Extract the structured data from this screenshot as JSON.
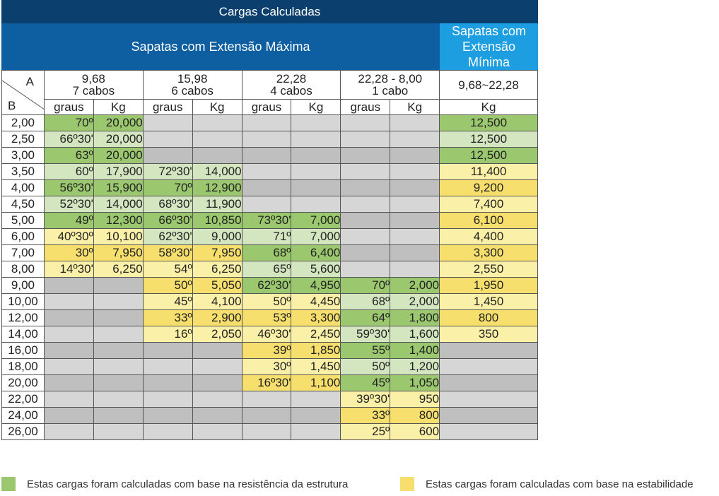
{
  "title": "Cargas Calculadas",
  "header_max": "Sapatas  com Extensão Máxima",
  "header_min": "Sapatas com\nExtensão Mínima",
  "corner": {
    "a": "A",
    "b": "B"
  },
  "groups": [
    {
      "line1": "9,68",
      "line2": "7 cabos"
    },
    {
      "line1": "15,98",
      "line2": "6 cabos"
    },
    {
      "line1": "22,28",
      "line2": "4 cabos"
    },
    {
      "line1": "22,28 - 8,00",
      "line2": "1 cabo"
    }
  ],
  "min_range": "9,68~22,28",
  "sub_graus": "graus",
  "sub_kg": "Kg",
  "colors": {
    "structure_green": "#9bc86f",
    "light_green": "#d3e6c0",
    "stability_yellow": "#f7df6e",
    "light_yellow": "#fbf0a7",
    "empty_gray": "#d6d6d6",
    "dark_gray": "#bfbfbf",
    "title_navy": "#0b3f6e",
    "header_blue": "#0d5fa1",
    "header_light_blue": "#1d9ee0"
  },
  "rows": [
    {
      "b": "2,00",
      "cells": [
        "70º",
        "20,000",
        "",
        "",
        "",
        "",
        "",
        "",
        "12,500"
      ],
      "colors": [
        "G",
        "G",
        "e",
        "e",
        "e",
        "e",
        "e",
        "e",
        "G"
      ]
    },
    {
      "b": "2,50",
      "cells": [
        "66º30'",
        "20,000",
        "",
        "",
        "",
        "",
        "",
        "",
        "12,500"
      ],
      "colors": [
        "g",
        "g",
        "e",
        "e",
        "e",
        "e",
        "e",
        "e",
        "g"
      ]
    },
    {
      "b": "3,00",
      "cells": [
        "63º",
        "20,000",
        "",
        "",
        "",
        "",
        "",
        "",
        "12,500"
      ],
      "colors": [
        "G",
        "G",
        "d",
        "d",
        "d",
        "d",
        "d",
        "d",
        "G"
      ]
    },
    {
      "b": "3,50",
      "cells": [
        "60º",
        "17,900",
        "72º30'",
        "14,000",
        "",
        "",
        "",
        "",
        "11,400"
      ],
      "colors": [
        "g",
        "g",
        "g",
        "g",
        "e",
        "e",
        "e",
        "e",
        "y"
      ]
    },
    {
      "b": "4,00",
      "cells": [
        "56º30'",
        "15,900",
        "70º",
        "12,900",
        "",
        "",
        "",
        "",
        "9,200"
      ],
      "colors": [
        "G",
        "G",
        "G",
        "G",
        "d",
        "d",
        "d",
        "d",
        "Y"
      ]
    },
    {
      "b": "4,50",
      "cells": [
        "52º30'",
        "14,000",
        "68º30'",
        "11,900",
        "",
        "",
        "",
        "",
        "7,400"
      ],
      "colors": [
        "g",
        "g",
        "g",
        "g",
        "e",
        "e",
        "e",
        "e",
        "y"
      ]
    },
    {
      "b": "5,00",
      "cells": [
        "49º",
        "12,300",
        "66º30'",
        "10,850",
        "73º30'",
        "7,000",
        "",
        "",
        "6,100"
      ],
      "colors": [
        "G",
        "G",
        "G",
        "G",
        "G",
        "G",
        "d",
        "d",
        "Y"
      ]
    },
    {
      "b": "6,00",
      "cells": [
        "40º30º",
        "10,100",
        "62º30'",
        "9,000",
        "71º",
        "7,000",
        "",
        "",
        "4,400"
      ],
      "colors": [
        "y",
        "y",
        "g",
        "g",
        "g",
        "g",
        "e",
        "e",
        "y"
      ]
    },
    {
      "b": "7,00",
      "cells": [
        "30º",
        "7,950",
        "58º30'",
        "7,950",
        "68º",
        "6,400",
        "",
        "",
        "3,300"
      ],
      "colors": [
        "Y",
        "Y",
        "Y",
        "Y",
        "G",
        "G",
        "d",
        "d",
        "Y"
      ]
    },
    {
      "b": "8,00",
      "cells": [
        "14º30'",
        "6,250",
        "54º",
        "6,250",
        "65º",
        "5,600",
        "",
        "",
        "2,550"
      ],
      "colors": [
        "y",
        "y",
        "y",
        "y",
        "g",
        "g",
        "e",
        "e",
        "y"
      ]
    },
    {
      "b": "9,00",
      "cells": [
        "",
        "",
        "50º",
        "5,050",
        "62º30'",
        "4,950",
        "70º",
        "2,000",
        "1,950"
      ],
      "colors": [
        "d",
        "d",
        "Y",
        "Y",
        "G",
        "G",
        "G",
        "G",
        "Y"
      ]
    },
    {
      "b": "10,00",
      "cells": [
        "",
        "",
        "45º",
        "4,100",
        "50º",
        "4,450",
        "68º",
        "2,000",
        "1,450"
      ],
      "colors": [
        "e",
        "e",
        "y",
        "y",
        "y",
        "y",
        "g",
        "g",
        "y"
      ]
    },
    {
      "b": "12,00",
      "cells": [
        "",
        "",
        "33º",
        "2,900",
        "53º",
        "3,300",
        "64º",
        "1,800",
        "800"
      ],
      "colors": [
        "d",
        "d",
        "Y",
        "Y",
        "Y",
        "Y",
        "G",
        "G",
        "Y"
      ]
    },
    {
      "b": "14,00",
      "cells": [
        "",
        "",
        "16º",
        "2,050",
        "46º30'",
        "2,450",
        "59º30'",
        "1,600",
        "350"
      ],
      "colors": [
        "e",
        "e",
        "y",
        "y",
        "y",
        "y",
        "g",
        "g",
        "y"
      ]
    },
    {
      "b": "16,00",
      "cells": [
        "",
        "",
        "",
        "",
        "39º",
        "1,850",
        "55º",
        "1,400",
        ""
      ],
      "colors": [
        "d",
        "d",
        "d",
        "d",
        "Y",
        "Y",
        "G",
        "G",
        "d"
      ]
    },
    {
      "b": "18,00",
      "cells": [
        "",
        "",
        "",
        "",
        "30º",
        "1,450",
        "50º",
        "1,200",
        ""
      ],
      "colors": [
        "e",
        "e",
        "e",
        "e",
        "y",
        "y",
        "g",
        "g",
        "e"
      ]
    },
    {
      "b": "20,00",
      "cells": [
        "",
        "",
        "",
        "",
        "16º30'",
        "1,100",
        "45º",
        "1,050",
        ""
      ],
      "colors": [
        "d",
        "d",
        "d",
        "d",
        "Y",
        "Y",
        "G",
        "G",
        "d"
      ]
    },
    {
      "b": "22,00",
      "cells": [
        "",
        "",
        "",
        "",
        "",
        "",
        "39º30'",
        "950",
        ""
      ],
      "colors": [
        "e",
        "e",
        "e",
        "e",
        "e",
        "e",
        "y",
        "y",
        "e"
      ]
    },
    {
      "b": "24,00",
      "cells": [
        "",
        "",
        "",
        "",
        "",
        "",
        "33º",
        "800",
        ""
      ],
      "colors": [
        "d",
        "d",
        "d",
        "d",
        "d",
        "d",
        "Y",
        "Y",
        "d"
      ]
    },
    {
      "b": "26,00",
      "cells": [
        "",
        "",
        "",
        "",
        "",
        "",
        "25º",
        "600",
        ""
      ],
      "colors": [
        "e",
        "e",
        "e",
        "e",
        "e",
        "e",
        "y",
        "y",
        "e"
      ]
    }
  ],
  "legend": {
    "structure": "Estas cargas foram calculadas com base na resistência da estrutura",
    "stability": "Estas cargas foram calculadas com base na estabilidade"
  }
}
